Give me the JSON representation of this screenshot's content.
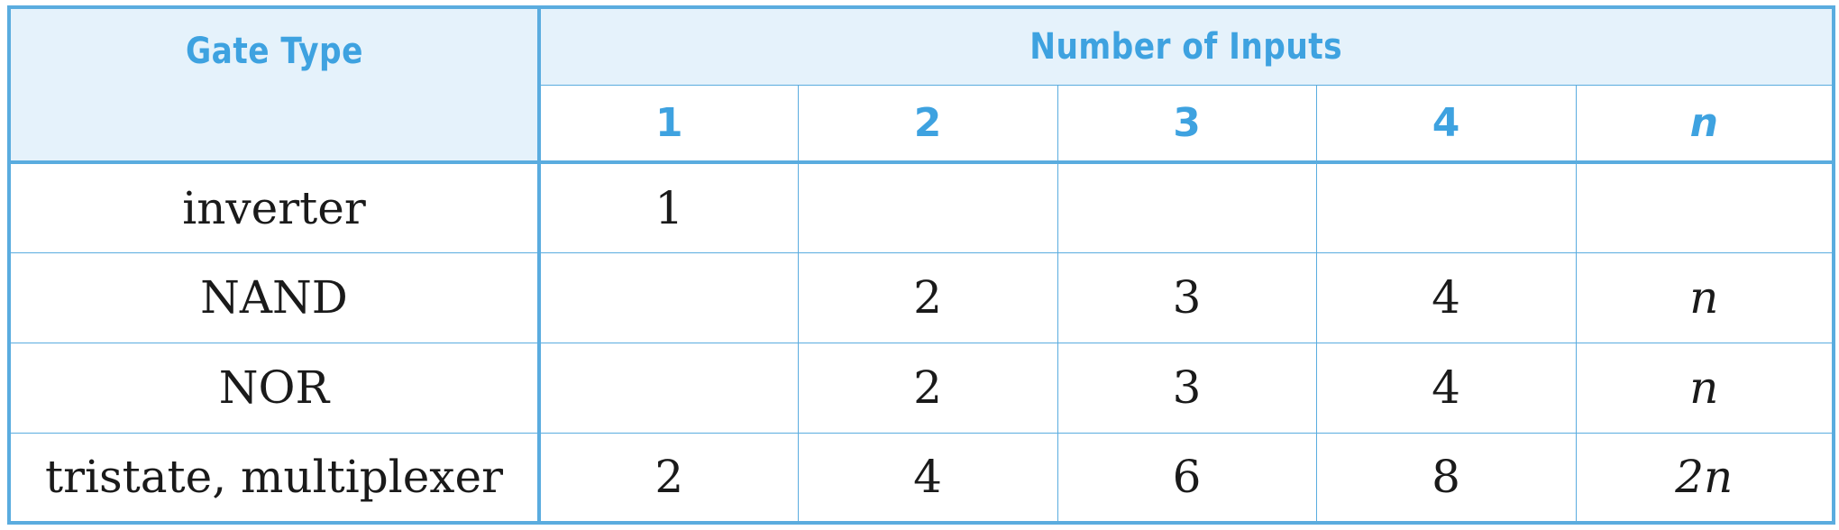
{
  "header": {
    "gate_type_label": "Gate Type",
    "number_of_inputs_label": "Number of Inputs",
    "input_counts": [
      {
        "label": "1",
        "italic": false
      },
      {
        "label": "2",
        "italic": false
      },
      {
        "label": "3",
        "italic": false
      },
      {
        "label": "4",
        "italic": false
      },
      {
        "label": "n",
        "italic": true
      }
    ]
  },
  "rows": [
    {
      "gate": "inverter",
      "cells": [
        "1",
        "",
        "",
        "",
        ""
      ]
    },
    {
      "gate": "NAND",
      "cells": [
        "",
        "2",
        "3",
        "4",
        "n"
      ]
    },
    {
      "gate": "NOR",
      "cells": [
        "",
        "2",
        "3",
        "4",
        "n"
      ]
    },
    {
      "gate": "tristate, multiplexer",
      "cells": [
        "2",
        "4",
        "6",
        "8",
        "2n"
      ]
    }
  ],
  "colors": {
    "border": "#5aacdf",
    "header_bg": "#e5f2fb",
    "header_text": "#3ea2e0"
  }
}
